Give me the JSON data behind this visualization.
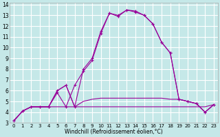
{
  "xlabel": "Windchill (Refroidissement éolien,°C)",
  "bg_color": "#c5e8e8",
  "grid_color": "#ffffff",
  "line_color": "#990099",
  "xlim": [
    -0.5,
    23.5
  ],
  "ylim": [
    3,
    14.2
  ],
  "xticks": [
    0,
    1,
    2,
    3,
    4,
    5,
    6,
    7,
    8,
    9,
    10,
    11,
    12,
    13,
    14,
    15,
    16,
    17,
    18,
    19,
    20,
    21,
    22,
    23
  ],
  "yticks": [
    3,
    4,
    5,
    6,
    7,
    8,
    9,
    10,
    11,
    12,
    13,
    14
  ],
  "flat_line_x": [
    0,
    1,
    2,
    3,
    4,
    5,
    6,
    7,
    8,
    9,
    10,
    11,
    12,
    13,
    14,
    15,
    16,
    17,
    18,
    19,
    20,
    21,
    22,
    23
  ],
  "flat_line_y": [
    3.2,
    4.1,
    4.5,
    4.5,
    4.5,
    4.5,
    4.5,
    4.5,
    4.5,
    4.5,
    4.5,
    4.5,
    4.5,
    4.5,
    4.5,
    4.5,
    4.5,
    4.5,
    4.5,
    4.5,
    4.5,
    4.5,
    4.5,
    4.7
  ],
  "zigzag_line_x": [
    0,
    1,
    2,
    3,
    4,
    5,
    6,
    7,
    8,
    9,
    10,
    11,
    12,
    13,
    14,
    15,
    16,
    17,
    18,
    19,
    20,
    21,
    22,
    23
  ],
  "zigzag_line_y": [
    3.2,
    4.1,
    4.5,
    4.5,
    4.5,
    6.0,
    6.5,
    4.5,
    5.0,
    5.2,
    5.3,
    5.3,
    5.3,
    5.3,
    5.3,
    5.3,
    5.3,
    5.3,
    5.2,
    5.2,
    5.0,
    4.8,
    4.0,
    4.7
  ],
  "arc_smooth_x": [
    0,
    1,
    2,
    3,
    4,
    5,
    6,
    7,
    8,
    9,
    10,
    11,
    12,
    13,
    14,
    15,
    16,
    17,
    18,
    19,
    20,
    21,
    22,
    23
  ],
  "arc_smooth_y": [
    3.2,
    4.1,
    4.5,
    4.5,
    4.5,
    5.8,
    4.5,
    6.5,
    7.8,
    8.8,
    11.3,
    13.2,
    12.9,
    13.5,
    13.3,
    13.0,
    12.2,
    10.5,
    9.5,
    5.2,
    5.0,
    4.8,
    4.0,
    4.7
  ],
  "arc_marker_x": [
    0,
    1,
    2,
    3,
    4,
    5,
    6,
    7,
    8,
    9,
    10,
    11,
    12,
    13,
    14,
    15,
    16,
    17,
    18,
    19,
    20,
    21,
    22,
    23
  ],
  "arc_marker_y": [
    3.2,
    4.1,
    4.5,
    4.5,
    4.5,
    6.0,
    6.5,
    4.5,
    8.0,
    9.0,
    11.5,
    13.2,
    13.0,
    13.5,
    13.4,
    13.0,
    12.2,
    10.5,
    9.5,
    5.2,
    5.0,
    4.8,
    4.0,
    4.7
  ]
}
